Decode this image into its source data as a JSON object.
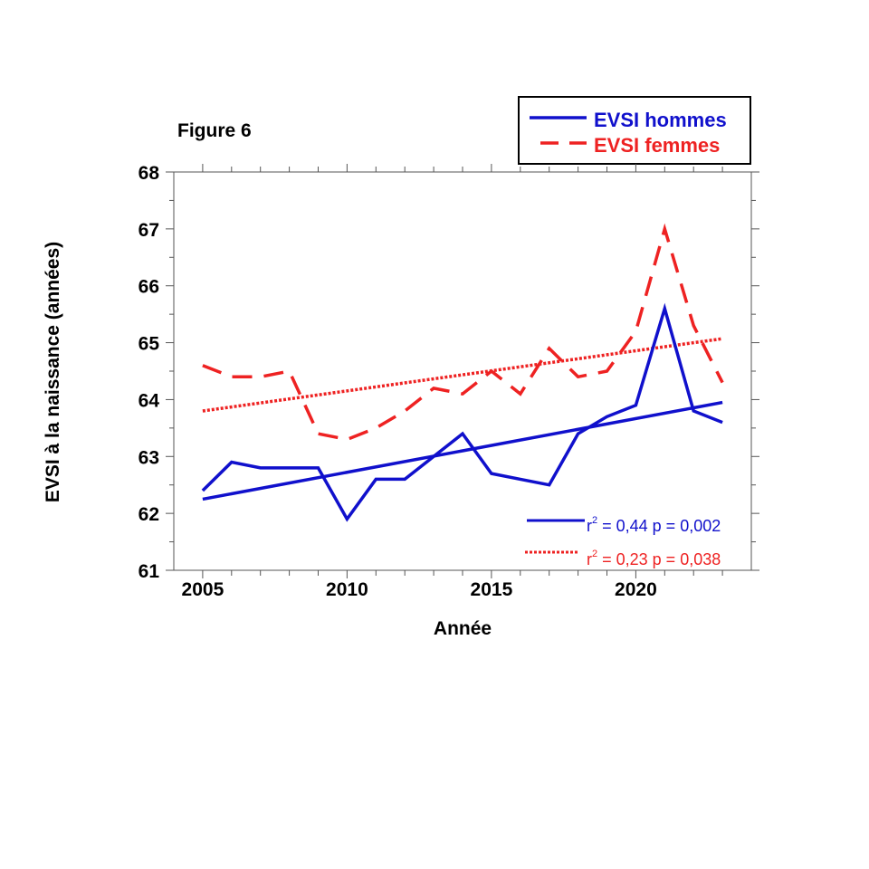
{
  "figure_label": "Figure 6",
  "legend": {
    "men_label": "EVSI hommes",
    "women_label": "EVSI femmes"
  },
  "stats": {
    "men": {
      "r2_prefix": "r",
      "r2_sup": "2",
      "text": " = 0,44 p = 0,002"
    },
    "women": {
      "r2_prefix": "r",
      "r2_sup": "2",
      "text": " = 0,23 p = 0,038"
    }
  },
  "colors": {
    "men": "#1010cc",
    "women": "#ee2222",
    "axis": "#555555"
  },
  "chart_data": {
    "type": "line",
    "xlabel": "Année",
    "ylabel": "EVSI à la naissance (années)",
    "xlim": [
      2004,
      2024
    ],
    "ylim": [
      61,
      68
    ],
    "x_ticks": [
      2005,
      2010,
      2015,
      2020
    ],
    "y_ticks": [
      61,
      62,
      63,
      64,
      65,
      66,
      67,
      68
    ],
    "grid": false,
    "legend_position": "top-right",
    "x": [
      2005,
      2006,
      2007,
      2008,
      2009,
      2010,
      2011,
      2012,
      2013,
      2014,
      2015,
      2016,
      2017,
      2018,
      2019,
      2020,
      2021,
      2022,
      2023
    ],
    "series": [
      {
        "name": "EVSI hommes",
        "style": "solid",
        "values": [
          62.4,
          62.9,
          62.8,
          62.8,
          62.8,
          61.9,
          62.6,
          62.6,
          63.0,
          63.4,
          62.7,
          62.6,
          62.5,
          63.4,
          63.7,
          63.9,
          65.6,
          63.8,
          63.6
        ]
      },
      {
        "name": "EVSI femmes",
        "style": "dashed",
        "values": [
          64.6,
          64.4,
          64.4,
          64.5,
          63.4,
          63.3,
          63.5,
          63.8,
          64.2,
          64.1,
          64.5,
          64.1,
          64.9,
          64.4,
          64.5,
          65.2,
          67.0,
          65.3,
          64.3
        ]
      }
    ],
    "trends": [
      {
        "series": "EVSI hommes",
        "style": "solid",
        "x": [
          2005,
          2023
        ],
        "y": [
          62.25,
          63.95
        ]
      },
      {
        "series": "EVSI femmes",
        "style": "dotted",
        "x": [
          2005,
          2023
        ],
        "y": [
          63.8,
          65.07
        ]
      }
    ]
  }
}
